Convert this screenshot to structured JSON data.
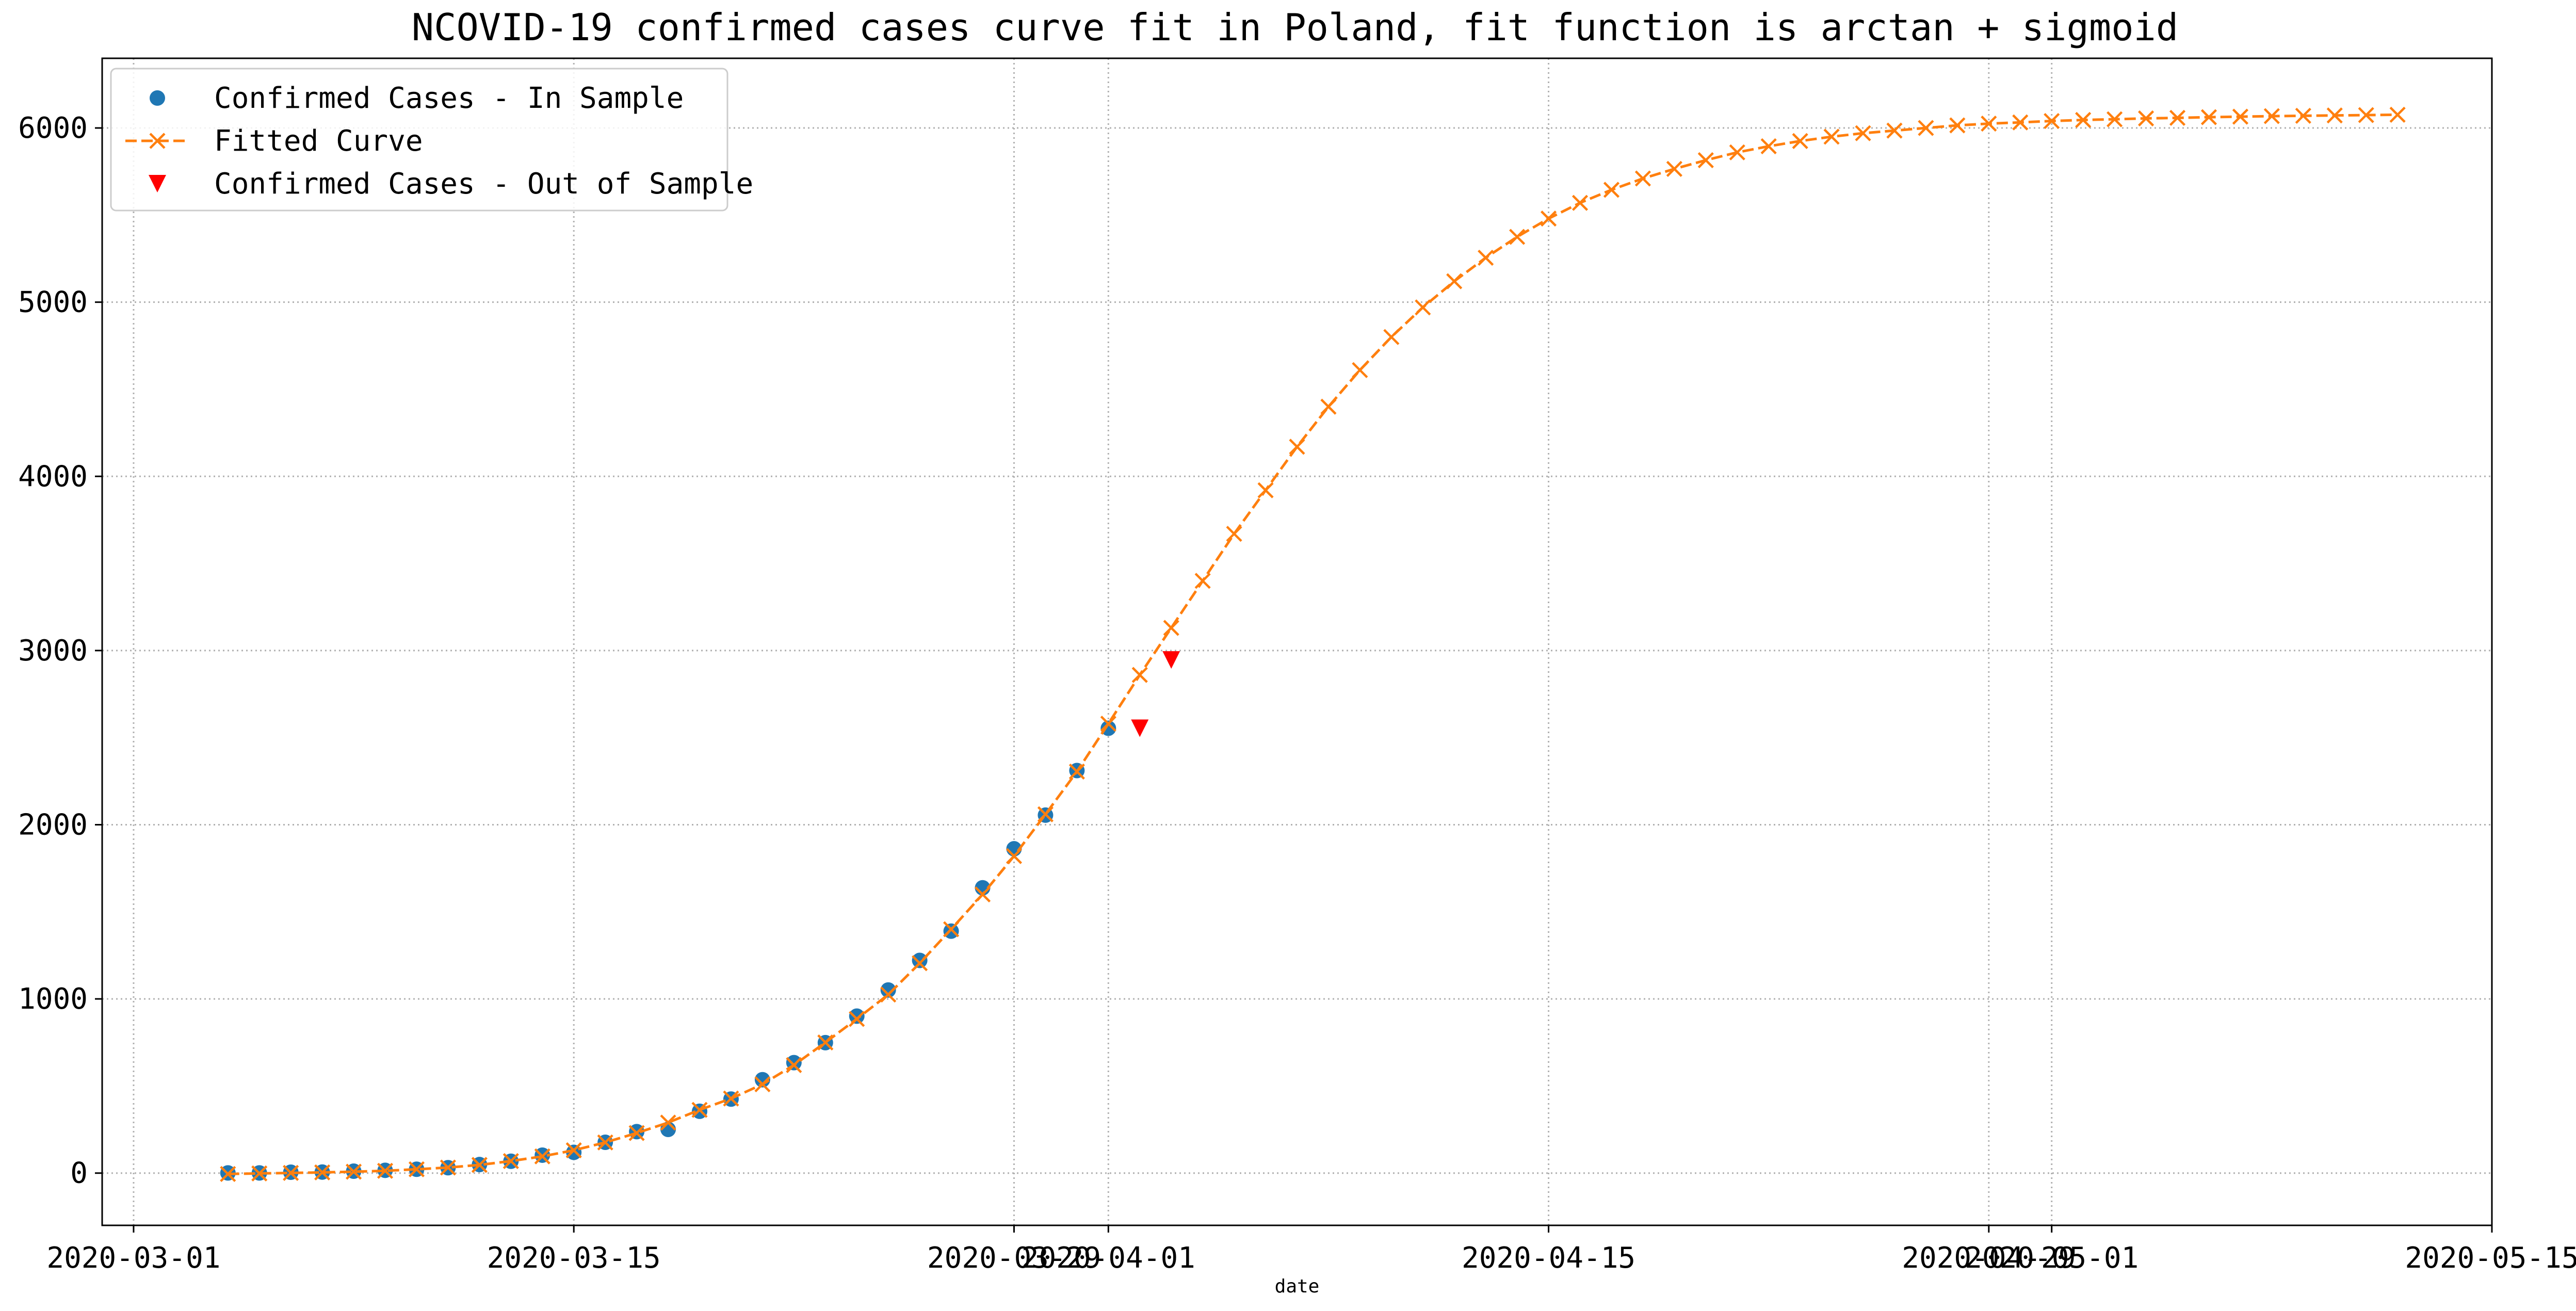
{
  "chart_data": {
    "type": "line",
    "title": "NCOVID-19 confirmed cases curve fit in Poland, fit function is arctan + sigmoid",
    "xlabel": "date",
    "ylabel": "",
    "xlim": [
      "2020-02-29",
      "2020-05-15"
    ],
    "ylim": [
      -300,
      6400
    ],
    "grid": true,
    "legend_position": "top-left",
    "x_ticks": [
      "2020-03-01",
      "2020-03-15",
      "2020-03-29",
      "2020-04-01",
      "2020-04-15",
      "2020-04-29",
      "2020-05-01",
      "2020-05-15"
    ],
    "x_tick_labels": [
      "2020-03-01",
      "2020-03-15",
      "2020-03-29",
      "2020-04-01",
      "2020-04-15",
      "2020-04-29",
      "2020-05-01",
      "2020-05-15"
    ],
    "y_ticks": [
      0,
      1000,
      2000,
      3000,
      4000,
      5000,
      6000
    ],
    "y_tick_labels": [
      "0",
      "1000",
      "2000",
      "3000",
      "4000",
      "5000",
      "6000"
    ],
    "series": [
      {
        "name": "Confirmed Cases - In Sample",
        "marker": "circle",
        "color": "#1f77b4",
        "line": "none",
        "x": [
          "2020-03-04",
          "2020-03-05",
          "2020-03-06",
          "2020-03-07",
          "2020-03-08",
          "2020-03-09",
          "2020-03-10",
          "2020-03-11",
          "2020-03-12",
          "2020-03-13",
          "2020-03-14",
          "2020-03-15",
          "2020-03-16",
          "2020-03-17",
          "2020-03-18",
          "2020-03-19",
          "2020-03-20",
          "2020-03-21",
          "2020-03-22",
          "2020-03-23",
          "2020-03-24",
          "2020-03-25",
          "2020-03-26",
          "2020-03-27",
          "2020-03-28",
          "2020-03-29",
          "2020-03-30",
          "2020-03-31",
          "2020-04-01"
        ],
        "y": [
          1,
          1,
          5,
          6,
          11,
          16,
          22,
          31,
          49,
          68,
          103,
          119,
          177,
          238,
          251,
          355,
          425,
          536,
          634,
          749,
          901,
          1051,
          1221,
          1389,
          1638,
          1862,
          2055,
          2311,
          2554
        ]
      },
      {
        "name": "Fitted Curve",
        "marker": "x",
        "color": "#ff7f0e",
        "line": "dashed",
        "x": [
          "2020-03-04",
          "2020-03-05",
          "2020-03-06",
          "2020-03-07",
          "2020-03-08",
          "2020-03-09",
          "2020-03-10",
          "2020-03-11",
          "2020-03-12",
          "2020-03-13",
          "2020-03-14",
          "2020-03-15",
          "2020-03-16",
          "2020-03-17",
          "2020-03-18",
          "2020-03-19",
          "2020-03-20",
          "2020-03-21",
          "2020-03-22",
          "2020-03-23",
          "2020-03-24",
          "2020-03-25",
          "2020-03-26",
          "2020-03-27",
          "2020-03-28",
          "2020-03-29",
          "2020-03-30",
          "2020-03-31",
          "2020-04-01",
          "2020-04-02",
          "2020-04-03",
          "2020-04-04",
          "2020-04-05",
          "2020-04-06",
          "2020-04-07",
          "2020-04-08",
          "2020-04-09",
          "2020-04-10",
          "2020-04-11",
          "2020-04-12",
          "2020-04-13",
          "2020-04-14",
          "2020-04-15",
          "2020-04-16",
          "2020-04-17",
          "2020-04-18",
          "2020-04-19",
          "2020-04-20",
          "2020-04-21",
          "2020-04-22",
          "2020-04-23",
          "2020-04-24",
          "2020-04-25",
          "2020-04-26",
          "2020-04-27",
          "2020-04-28",
          "2020-04-29",
          "2020-04-30",
          "2020-05-01",
          "2020-05-02",
          "2020-05-03",
          "2020-05-04",
          "2020-05-05",
          "2020-05-06",
          "2020-05-07",
          "2020-05-08",
          "2020-05-09",
          "2020-05-10",
          "2020-05-11",
          "2020-05-12"
        ],
        "y": [
          -5,
          -2,
          1,
          4,
          8,
          13,
          22,
          32,
          47,
          69,
          96,
          131,
          176,
          230,
          290,
          363,
          428,
          510,
          620,
          750,
          885,
          1025,
          1205,
          1400,
          1600,
          1820,
          2060,
          2305,
          2580,
          2860,
          3130,
          3400,
          3670,
          3920,
          4170,
          4400,
          4610,
          4800,
          4970,
          5120,
          5255,
          5375,
          5480,
          5570,
          5645,
          5710,
          5765,
          5815,
          5860,
          5895,
          5925,
          5950,
          5970,
          5985,
          6000,
          6015,
          6025,
          6032,
          6040,
          6046,
          6050,
          6055,
          6058,
          6062,
          6065,
          6068,
          6070,
          6072,
          6074,
          6076
        ]
      },
      {
        "name": "Confirmed Cases - Out of Sample",
        "marker": "triangle-down",
        "color": "#ff0000",
        "line": "none",
        "x": [
          "2020-04-02",
          "2020-04-03"
        ],
        "y": [
          2554,
          2946
        ]
      }
    ]
  }
}
